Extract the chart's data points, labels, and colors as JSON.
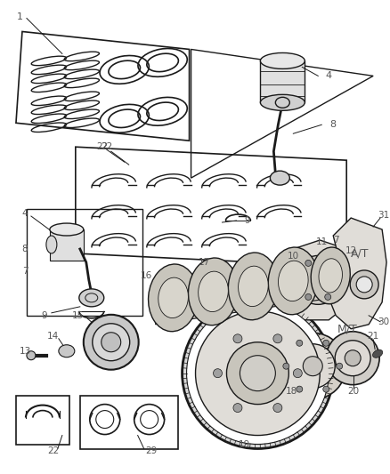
{
  "bg_color": "#ffffff",
  "line_color": "#1a1a1a",
  "label_color": "#555555",
  "fig_width": 4.38,
  "fig_height": 5.33,
  "dpi": 100
}
